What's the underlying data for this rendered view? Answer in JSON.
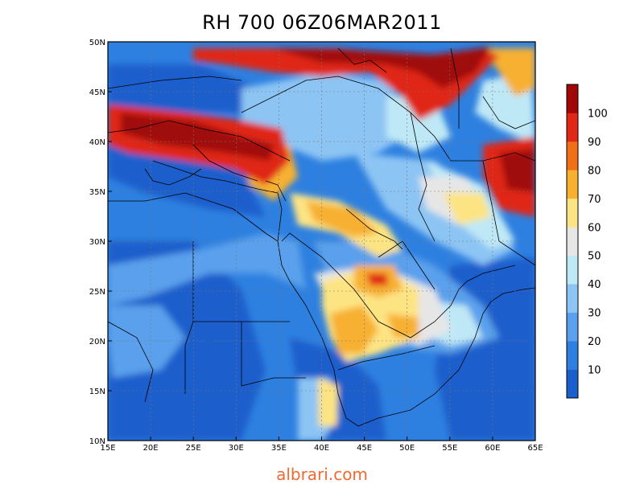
{
  "title": "RH 700 06Z06MAR2011",
  "watermark": "albrari.com",
  "map": {
    "projection": "lat-lon",
    "lon_range": [
      15,
      65
    ],
    "lat_range": [
      10,
      50
    ],
    "lon_ticks": [
      "15E",
      "20E",
      "25E",
      "30E",
      "35E",
      "40E",
      "45E",
      "50E",
      "55E",
      "60E",
      "65E"
    ],
    "lat_ticks": [
      "10N",
      "15N",
      "20N",
      "25N",
      "30N",
      "35N",
      "40N",
      "45N",
      "50N"
    ],
    "grid": "dotted",
    "variable": "relative humidity at 700 hPa"
  },
  "colorbar": {
    "labels": [
      "10",
      "20",
      "30",
      "40",
      "50",
      "60",
      "70",
      "80",
      "90",
      "100"
    ],
    "colors": [
      "#1a5fcc",
      "#2e80e0",
      "#5aa0ec",
      "#8cc4f4",
      "#bfe8f6",
      "#e6e6e6",
      "#fde483",
      "#f7b030",
      "#f07018",
      "#e02818",
      "#a00808"
    ]
  }
}
